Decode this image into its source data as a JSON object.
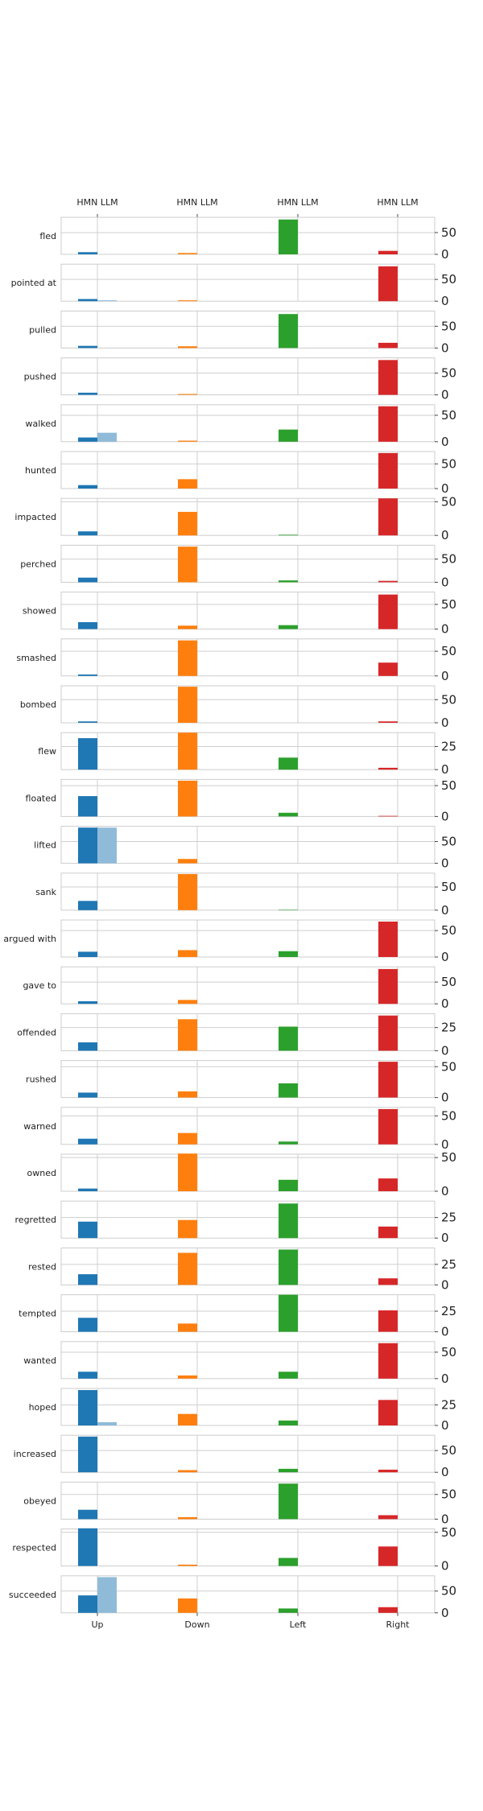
{
  "chart_data": {
    "type": "bar",
    "categories": [
      "Up",
      "Down",
      "Left",
      "Right"
    ],
    "top_ticks": [
      "HMN LLM",
      "HMN LLM",
      "HMN LLM",
      "HMN LLM"
    ],
    "series": [
      "HMN",
      "LLM"
    ],
    "colors": {
      "Up": "#1f77b4",
      "Up_light": "#8fbbd9",
      "Down": "#ff7f0e",
      "Down_light": "#ffbf86",
      "Left": "#2ca02c",
      "Left_light": "#95cf95",
      "Right": "#d62728",
      "Right_light": "#ea9293"
    },
    "grid": true,
    "rows": [
      {
        "verb": "fled",
        "ylim": [
          0,
          85
        ],
        "yticks": [
          "0",
          "50"
        ],
        "yticks_v": [
          0,
          50
        ],
        "hmn": [
          5,
          3,
          80,
          8
        ],
        "llm": [
          0,
          0,
          0,
          0
        ]
      },
      {
        "verb": "pointed at",
        "ylim": [
          0,
          85
        ],
        "yticks": [
          "0",
          "50"
        ],
        "yticks_v": [
          0,
          50
        ],
        "hmn": [
          5,
          2,
          0,
          80
        ],
        "llm": [
          2,
          0,
          0,
          0
        ]
      },
      {
        "verb": "pulled",
        "ylim": [
          0,
          85
        ],
        "yticks": [
          "0",
          "50"
        ],
        "yticks_v": [
          0,
          50
        ],
        "hmn": [
          5,
          4,
          78,
          12
        ],
        "llm": [
          0,
          0,
          0,
          0
        ]
      },
      {
        "verb": "pushed",
        "ylim": [
          0,
          85
        ],
        "yticks": [
          "0",
          "50"
        ],
        "yticks_v": [
          0,
          50
        ],
        "hmn": [
          5,
          2,
          0,
          80
        ],
        "llm": [
          0,
          0,
          0,
          0
        ]
      },
      {
        "verb": "walked",
        "ylim": [
          0,
          70
        ],
        "yticks": [
          "0",
          "50"
        ],
        "yticks_v": [
          0,
          50
        ],
        "hmn": [
          8,
          2,
          23,
          67
        ],
        "llm": [
          17,
          0,
          0,
          0
        ]
      },
      {
        "verb": "hunted",
        "ylim": [
          0,
          75
        ],
        "yticks": [
          "0",
          "50"
        ],
        "yticks_v": [
          0,
          50
        ],
        "hmn": [
          7,
          19,
          0,
          72
        ],
        "llm": [
          0,
          0,
          0,
          0
        ]
      },
      {
        "verb": "impacted",
        "ylim": [
          0,
          55
        ],
        "yticks": [
          "0",
          "50"
        ],
        "yticks_v": [
          0,
          50
        ],
        "hmn": [
          6,
          35,
          1,
          55
        ],
        "llm": [
          0,
          0,
          0,
          0
        ]
      },
      {
        "verb": "perched",
        "ylim": [
          0,
          80
        ],
        "yticks": [
          "0",
          "50"
        ],
        "yticks_v": [
          0,
          50
        ],
        "hmn": [
          10,
          77,
          4,
          3
        ],
        "llm": [
          0,
          0,
          0,
          0
        ]
      },
      {
        "verb": "showed",
        "ylim": [
          0,
          75
        ],
        "yticks": [
          "0",
          "50"
        ],
        "yticks_v": [
          0,
          50
        ],
        "hmn": [
          14,
          7,
          8,
          70
        ],
        "llm": [
          0,
          0,
          0,
          0
        ]
      },
      {
        "verb": "smashed",
        "ylim": [
          0,
          75
        ],
        "yticks": [
          "0",
          "50"
        ],
        "yticks_v": [
          0,
          50
        ],
        "hmn": [
          3,
          72,
          0,
          27
        ],
        "llm": [
          0,
          0,
          0,
          0
        ]
      },
      {
        "verb": "bombed",
        "ylim": [
          0,
          80
        ],
        "yticks": [
          "0",
          "50"
        ],
        "yticks_v": [
          0,
          50
        ],
        "hmn": [
          3,
          78,
          0,
          3
        ],
        "llm": [
          0,
          0,
          0,
          0
        ]
      },
      {
        "verb": "flew",
        "ylim": [
          0,
          40
        ],
        "yticks": [
          "0",
          "25"
        ],
        "yticks_v": [
          0,
          25
        ],
        "hmn": [
          34,
          40,
          13,
          2
        ],
        "llm": [
          0,
          0,
          0,
          0
        ]
      },
      {
        "verb": "floated",
        "ylim": [
          0,
          60
        ],
        "yticks": [
          "0",
          "50"
        ],
        "yticks_v": [
          0,
          50
        ],
        "hmn": [
          33,
          58,
          6,
          1
        ],
        "llm": [
          0,
          0,
          0,
          0
        ]
      },
      {
        "verb": "lifted",
        "ylim": [
          0,
          85
        ],
        "yticks": [
          "0",
          "50"
        ],
        "yticks_v": [
          0,
          50
        ],
        "hmn": [
          82,
          10,
          0,
          0
        ],
        "llm": [
          82,
          0,
          0,
          0
        ]
      },
      {
        "verb": "sank",
        "ylim": [
          0,
          80
        ],
        "yticks": [
          "0",
          "50"
        ],
        "yticks_v": [
          0,
          50
        ],
        "hmn": [
          20,
          78,
          1,
          0
        ],
        "llm": [
          0,
          0,
          0,
          0
        ]
      },
      {
        "verb": "argued with",
        "ylim": [
          0,
          70
        ],
        "yticks": [
          "0",
          "50"
        ],
        "yticks_v": [
          0,
          50
        ],
        "hmn": [
          10,
          13,
          11,
          67
        ],
        "llm": [
          0,
          0,
          0,
          0
        ]
      },
      {
        "verb": "gave to",
        "ylim": [
          0,
          85
        ],
        "yticks": [
          "0",
          "50"
        ],
        "yticks_v": [
          0,
          50
        ],
        "hmn": [
          6,
          9,
          0,
          80
        ],
        "llm": [
          0,
          0,
          0,
          0
        ]
      },
      {
        "verb": "offended",
        "ylim": [
          0,
          40
        ],
        "yticks": [
          "0",
          "25"
        ],
        "yticks_v": [
          0,
          25
        ],
        "hmn": [
          9,
          34,
          26,
          38
        ],
        "llm": [
          0,
          0,
          0,
          0
        ]
      },
      {
        "verb": "rushed",
        "ylim": [
          0,
          60
        ],
        "yticks": [
          "0",
          "50"
        ],
        "yticks_v": [
          0,
          50
        ],
        "hmn": [
          8,
          10,
          23,
          58
        ],
        "llm": [
          0,
          0,
          0,
          0
        ]
      },
      {
        "verb": "warned",
        "ylim": [
          0,
          65
        ],
        "yticks": [
          "0",
          "50"
        ],
        "yticks_v": [
          0,
          50
        ],
        "hmn": [
          10,
          20,
          5,
          62
        ],
        "llm": [
          0,
          0,
          0,
          0
        ]
      },
      {
        "verb": "owned",
        "ylim": [
          0,
          55
        ],
        "yticks": [
          "0",
          "50"
        ],
        "yticks_v": [
          0,
          50
        ],
        "hmn": [
          4,
          56,
          17,
          19
        ],
        "llm": [
          0,
          0,
          0,
          0
        ]
      },
      {
        "verb": "regretted",
        "ylim": [
          0,
          45
        ],
        "yticks": [
          "0",
          "25"
        ],
        "yticks_v": [
          0,
          25
        ],
        "hmn": [
          20,
          22,
          42,
          14
        ],
        "llm": [
          0,
          0,
          0,
          0
        ]
      },
      {
        "verb": "rested",
        "ylim": [
          0,
          45
        ],
        "yticks": [
          "0",
          "25"
        ],
        "yticks_v": [
          0,
          25
        ],
        "hmn": [
          13,
          39,
          43,
          8
        ],
        "llm": [
          0,
          0,
          0,
          0
        ]
      },
      {
        "verb": "tempted",
        "ylim": [
          0,
          45
        ],
        "yticks": [
          "0",
          "25"
        ],
        "yticks_v": [
          0,
          25
        ],
        "hmn": [
          17,
          10,
          45,
          26
        ],
        "llm": [
          0,
          0,
          0,
          0
        ]
      },
      {
        "verb": "wanted",
        "ylim": [
          0,
          70
        ],
        "yticks": [
          "0",
          "50"
        ],
        "yticks_v": [
          0,
          50
        ],
        "hmn": [
          13,
          6,
          13,
          67
        ],
        "llm": [
          0,
          0,
          0,
          0
        ]
      },
      {
        "verb": "hoped",
        "ylim": [
          0,
          45
        ],
        "yticks": [
          "0",
          "25"
        ],
        "yticks_v": [
          0,
          25
        ],
        "hmn": [
          43,
          14,
          6,
          31
        ],
        "llm": [
          4,
          0,
          0,
          0
        ]
      },
      {
        "verb": "increased",
        "ylim": [
          0,
          85
        ],
        "yticks": [
          "0",
          "50"
        ],
        "yticks_v": [
          0,
          50
        ],
        "hmn": [
          82,
          5,
          8,
          6
        ],
        "llm": [
          0,
          0,
          0,
          0
        ]
      },
      {
        "verb": "obeyed",
        "ylim": [
          0,
          75
        ],
        "yticks": [
          "0",
          "50"
        ],
        "yticks_v": [
          0,
          50
        ],
        "hmn": [
          19,
          4,
          72,
          8
        ],
        "llm": [
          0,
          0,
          0,
          0
        ]
      },
      {
        "verb": "respected",
        "ylim": [
          0,
          55
        ],
        "yticks": [
          "0",
          "50"
        ],
        "yticks_v": [
          0,
          50
        ],
        "hmn": [
          56,
          2,
          12,
          29
        ],
        "llm": [
          0,
          0,
          0,
          0
        ]
      },
      {
        "verb": "succeeded",
        "ylim": [
          0,
          85
        ],
        "yticks": [
          "0",
          "50"
        ],
        "yticks_v": [
          0,
          50
        ],
        "hmn": [
          40,
          33,
          10,
          13
        ],
        "llm": [
          82,
          0,
          0,
          0
        ]
      }
    ]
  }
}
